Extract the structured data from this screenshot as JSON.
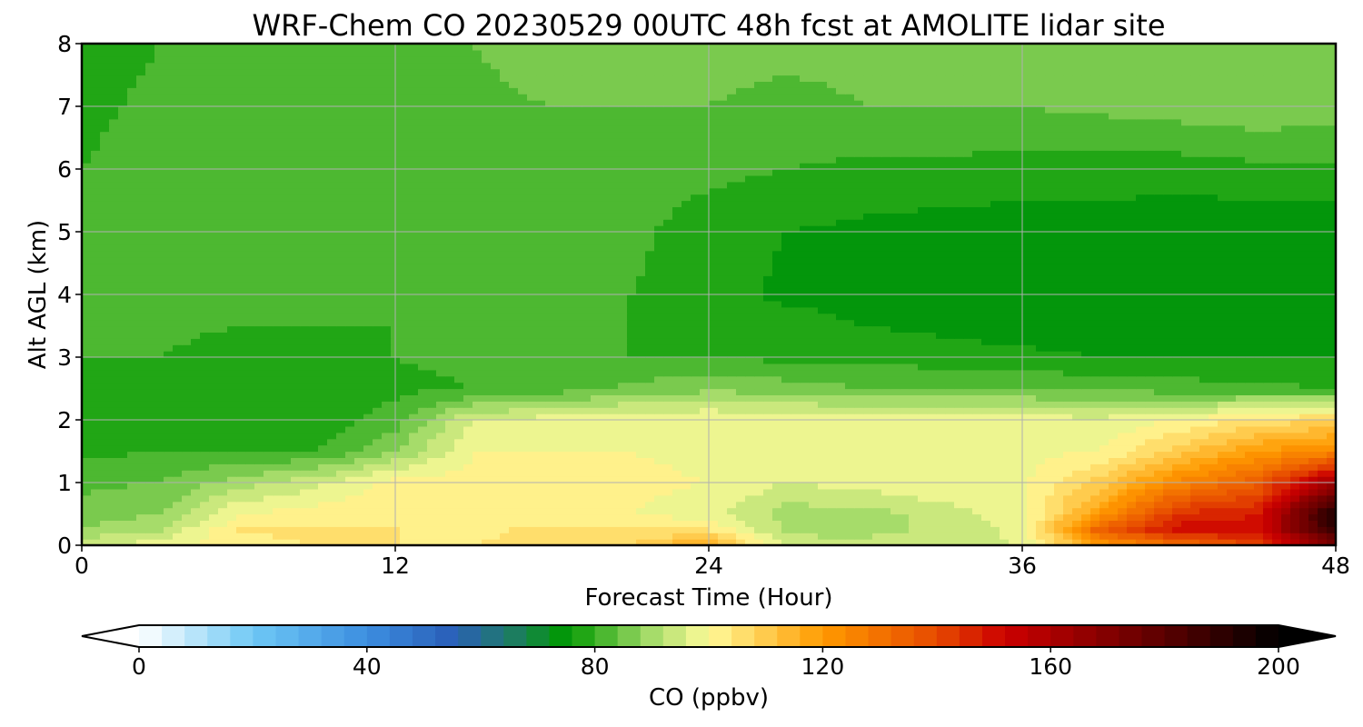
{
  "chart_data": {
    "type": "heatmap",
    "title": "WRF-Chem CO  20230529 00UTC 48h fcst at AMOLITE lidar site",
    "xlabel": "Forecast Time (Hour)",
    "ylabel": "Alt AGL (km)",
    "xlim": [
      0,
      48
    ],
    "ylim": [
      0,
      8
    ],
    "xticks": [
      0,
      12,
      24,
      36,
      48
    ],
    "xtick_labels": [
      "0",
      "12",
      "24",
      "36",
      "48"
    ],
    "yticks": [
      0,
      1,
      2,
      3,
      4,
      5,
      6,
      7,
      8
    ],
    "ytick_labels": [
      "0",
      "1",
      "2",
      "3",
      "4",
      "5",
      "6",
      "7",
      "8"
    ],
    "grid": true,
    "colorbar": {
      "label": "CO  (ppbv)",
      "orientation": "horizontal",
      "vmin": 0,
      "vmax": 200,
      "extend": "both",
      "ticks": [
        0,
        40,
        80,
        120,
        160,
        200
      ],
      "tick_labels": [
        "0",
        "40",
        "80",
        "120",
        "160",
        "200"
      ],
      "colormap": [
        {
          "value": 0,
          "color": "#ffffff"
        },
        {
          "value": 20,
          "color": "#6ec8f5"
        },
        {
          "value": 40,
          "color": "#3c8ee0"
        },
        {
          "value": 55,
          "color": "#2a5fb8"
        },
        {
          "value": 65,
          "color": "#1f7a6a"
        },
        {
          "value": 75,
          "color": "#009900"
        },
        {
          "value": 90,
          "color": "#a6dc6a"
        },
        {
          "value": 100,
          "color": "#fffb9a"
        },
        {
          "value": 120,
          "color": "#ff9a00"
        },
        {
          "value": 140,
          "color": "#e64a00"
        },
        {
          "value": 152,
          "color": "#cc0000"
        },
        {
          "value": 180,
          "color": "#5a0000"
        },
        {
          "value": 200,
          "color": "#000000"
        }
      ]
    },
    "x": [
      0,
      3,
      6,
      9,
      12,
      15,
      18,
      21,
      24,
      27,
      30,
      33,
      36,
      39,
      42,
      45,
      48
    ],
    "y": [
      0,
      0.25,
      0.5,
      1,
      1.5,
      2,
      2.5,
      3,
      3.5,
      4,
      5,
      6,
      7,
      8
    ],
    "z": [
      [
        96,
        98,
        103,
        104,
        104,
        104,
        106,
        108,
        118,
        94,
        94,
        95,
        96,
        120,
        130,
        140,
        170
      ],
      [
        88,
        92,
        104,
        105,
        104,
        103,
        105,
        105,
        104,
        91,
        90,
        94,
        97,
        135,
        150,
        150,
        190
      ],
      [
        86,
        88,
        100,
        102,
        103,
        102,
        102,
        100,
        98,
        90,
        90,
        94,
        98,
        120,
        145,
        148,
        195
      ],
      [
        83,
        84,
        90,
        95,
        102,
        102,
        101,
        101,
        100,
        96,
        98,
        100,
        99,
        110,
        125,
        135,
        165
      ],
      [
        79,
        80,
        80,
        80,
        88,
        100,
        100,
        100,
        99,
        99,
        100,
        100,
        99,
        100,
        110,
        120,
        125
      ],
      [
        78,
        78,
        78,
        77,
        82,
        96,
        98,
        100,
        100,
        99,
        98,
        98,
        98,
        97,
        100,
        105,
        108
      ],
      [
        79,
        79,
        78,
        78,
        79,
        80,
        82,
        85,
        87,
        86,
        84,
        84,
        84,
        83,
        82,
        81,
        80
      ],
      [
        80,
        80,
        78,
        78,
        80,
        81,
        80,
        80,
        80,
        79,
        79,
        78,
        77,
        76,
        76,
        76,
        76
      ],
      [
        80,
        81,
        80,
        80,
        80,
        81,
        81,
        80,
        79,
        78,
        76,
        75,
        74,
        74,
        74,
        74,
        74
      ],
      [
        81,
        82,
        82,
        83,
        81,
        82,
        83,
        80,
        78,
        75,
        74,
        74,
        73,
        73,
        72,
        72,
        72
      ],
      [
        80,
        81,
        82,
        83,
        80,
        82,
        83,
        81,
        78,
        76,
        75,
        74,
        74,
        74,
        73,
        73,
        73
      ],
      [
        80,
        82,
        84,
        83,
        81,
        82,
        82,
        82,
        81,
        80,
        79,
        79,
        78,
        78,
        78,
        79,
        79
      ],
      [
        79,
        81,
        83,
        84,
        83,
        83,
        84,
        84,
        84,
        83,
        84,
        84,
        84,
        85,
        86,
        87,
        86
      ],
      [
        78,
        80,
        82,
        83,
        83,
        84,
        86,
        86,
        85,
        85,
        85,
        84,
        85,
        86,
        88,
        88,
        86
      ]
    ]
  }
}
